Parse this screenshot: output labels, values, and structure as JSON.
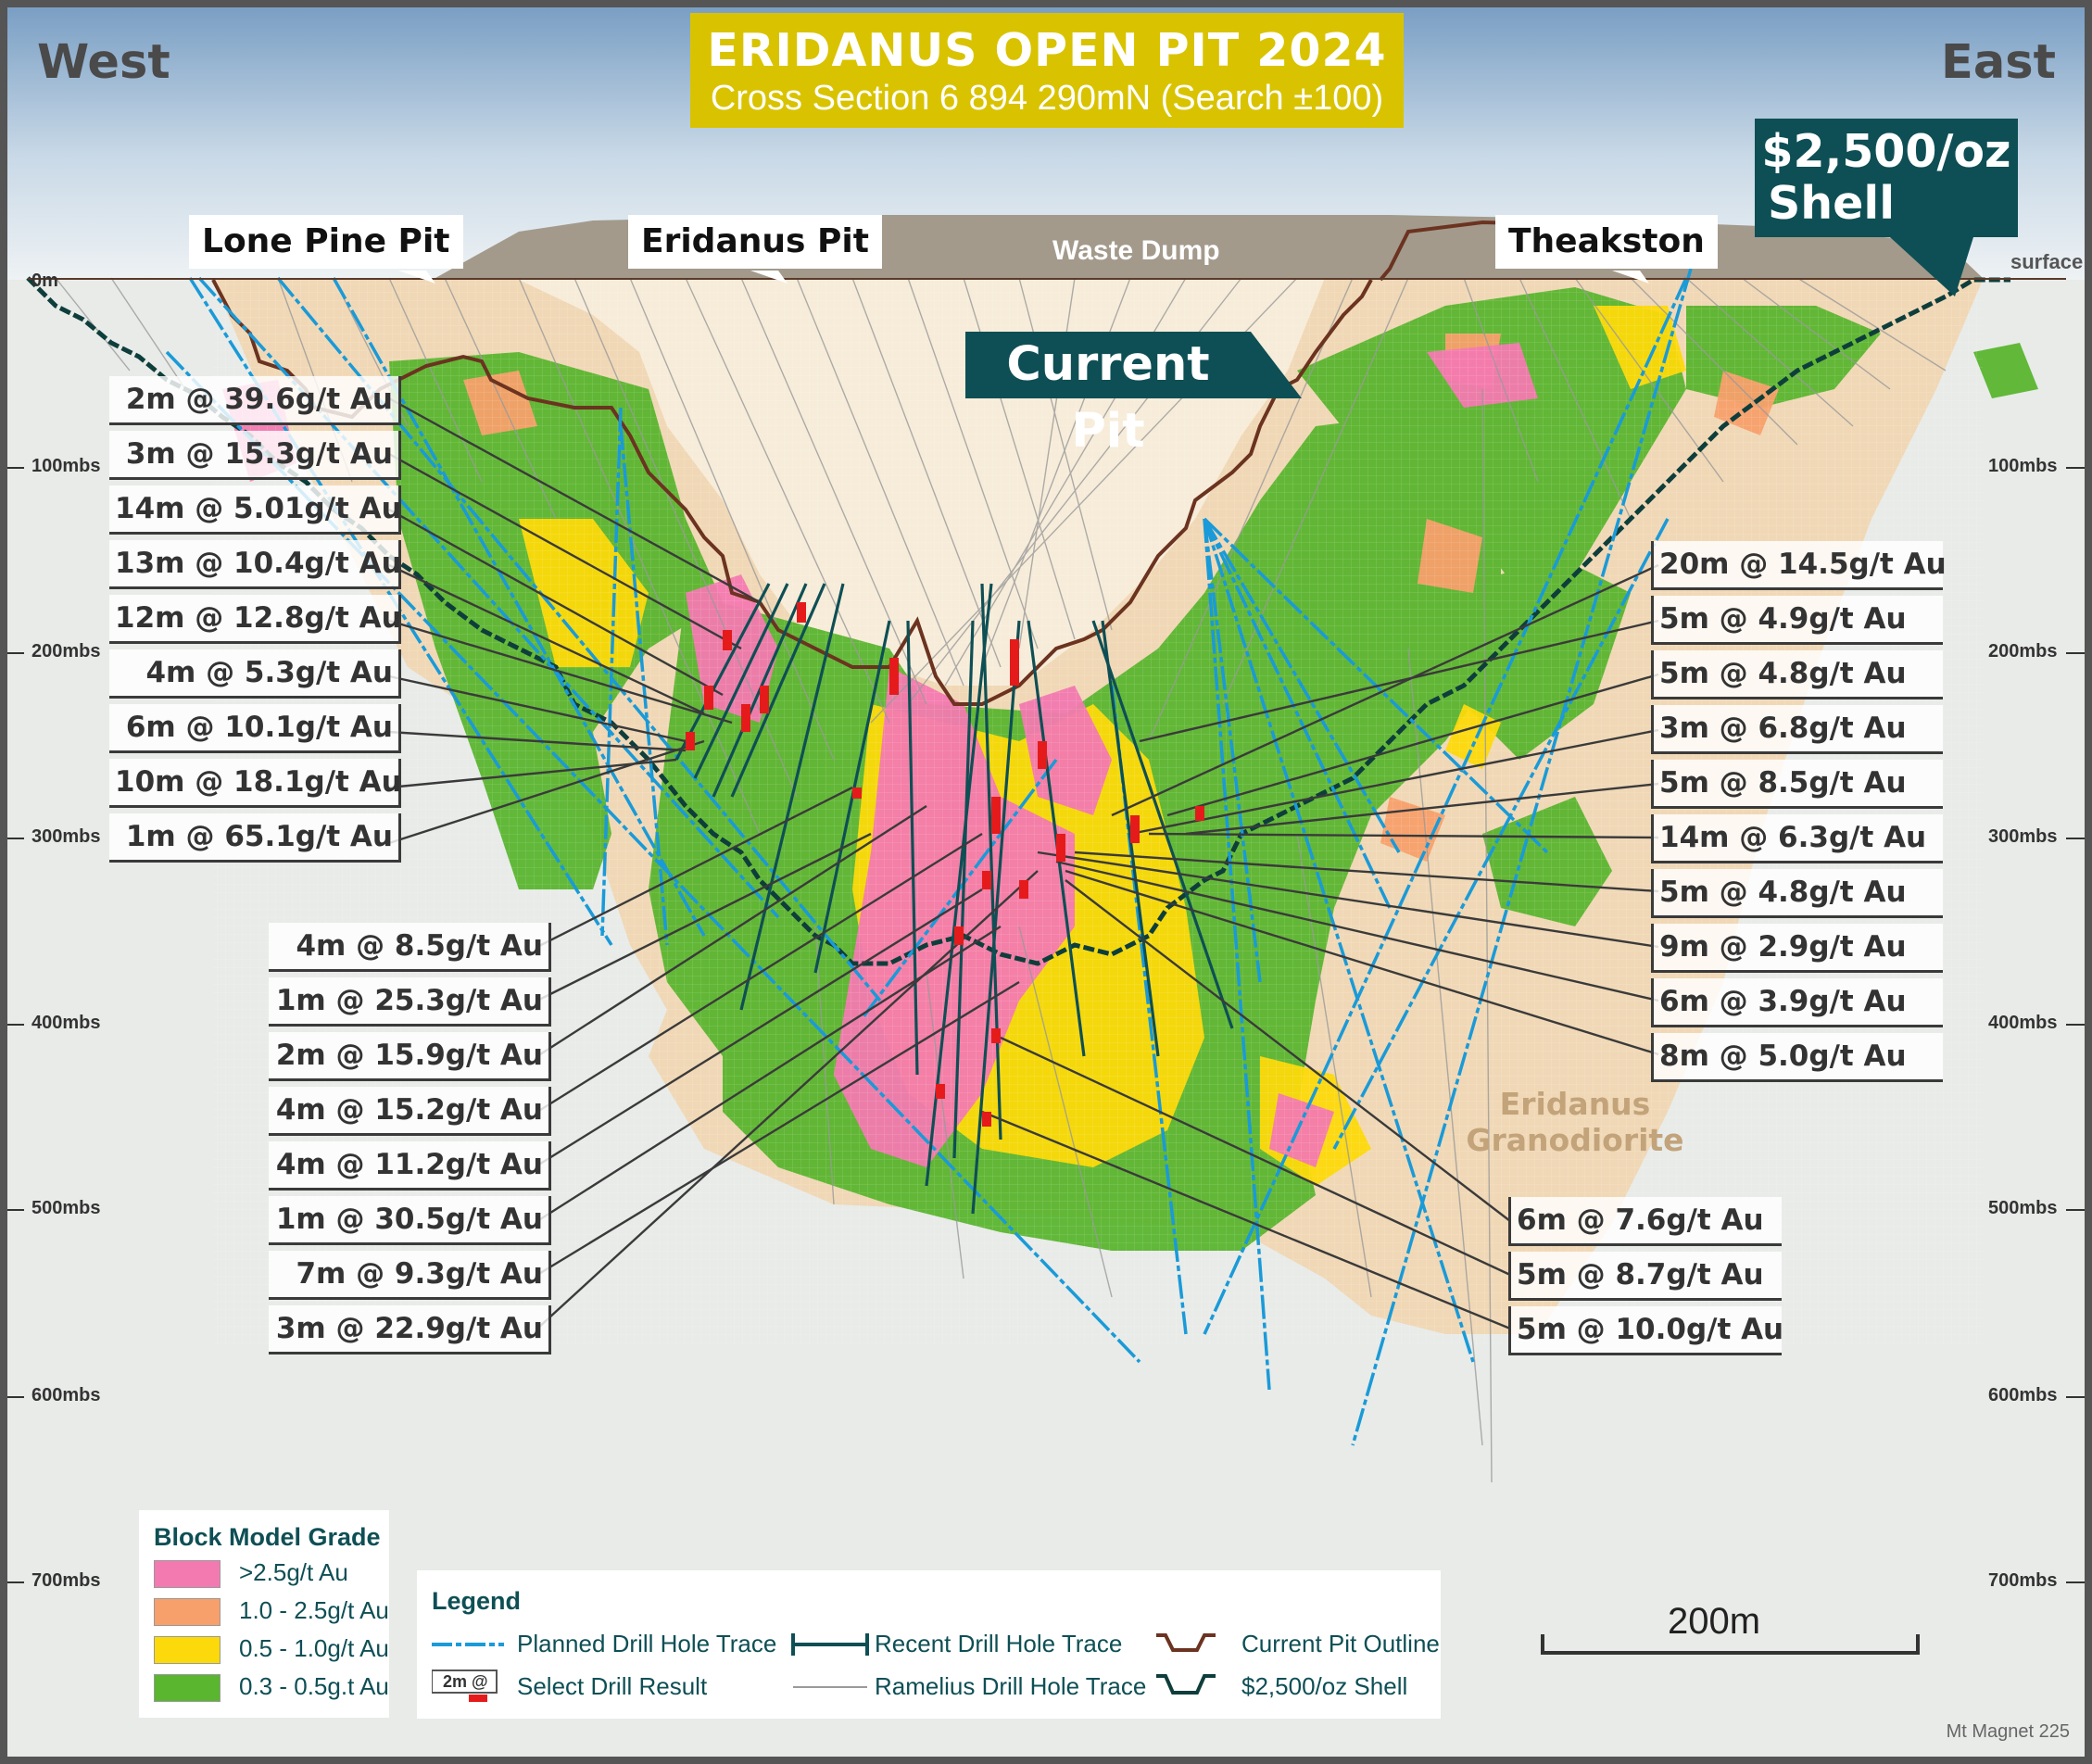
{
  "title": {
    "main": "ERIDANUS OPEN PIT 2024",
    "sub": "Cross Section 6 894 290mN (Search ±100)"
  },
  "directions": {
    "west": "West",
    "east": "East"
  },
  "pit_tags": {
    "lone_pine": "Lone Pine Pit",
    "eridanus": "Eridanus Pit",
    "theakston": "Theakston"
  },
  "labels": {
    "waste_dump": "Waste Dump",
    "surface": "surface",
    "zero": "0m",
    "current_pit": "Current Pit",
    "shell_line1": "$2,500/oz",
    "shell_line2": "Shell",
    "granodiorite_line1": "Eridanus",
    "granodiorite_line2": "Granodiorite"
  },
  "depth_axis": [
    "100mbs",
    "200mbs",
    "300mbs",
    "400mbs",
    "500mbs",
    "600mbs",
    "700mbs"
  ],
  "results_left_top": [
    "2m @ 39.6g/t Au",
    "3m @ 15.3g/t Au",
    "14m @ 5.01g/t Au",
    "13m @ 10.4g/t Au",
    "12m @ 12.8g/t Au",
    "4m @ 5.3g/t Au",
    "6m @ 10.1g/t Au",
    "10m @ 18.1g/t Au",
    "1m @ 65.1g/t Au"
  ],
  "results_left_bottom": [
    "4m @ 8.5g/t Au",
    "1m @ 25.3g/t Au",
    "2m @ 15.9g/t Au",
    "4m @ 15.2g/t Au",
    "4m @ 11.2g/t Au",
    "1m @ 30.5g/t Au",
    "7m @ 9.3g/t Au",
    "3m @ 22.9g/t Au"
  ],
  "results_right_top": [
    "20m @ 14.5g/t Au",
    "5m @ 4.9g/t Au",
    "5m @ 4.8g/t Au",
    "3m @ 6.8g/t Au",
    "5m @ 8.5g/t Au",
    "14m @ 6.3g/t Au",
    "5m @ 4.8g/t Au",
    "9m @ 2.9g/t Au",
    "6m @ 3.9g/t Au",
    "8m @ 5.0g/t Au"
  ],
  "results_right_bottom": [
    "6m @ 7.6g/t Au",
    "5m @ 8.7g/t Au",
    "5m @ 10.0g/t Au"
  ],
  "grade_legend": {
    "title": "Block Model Grade",
    "items": [
      {
        "label": ">2.5g/t Au",
        "color": "#f37ab0"
      },
      {
        "label": "1.0 - 2.5g/t Au",
        "color": "#f7a06c"
      },
      {
        "label": "0.5 - 1.0g/t Au",
        "color": "#fcd90a"
      },
      {
        "label": "0.3 - 0.5g.t Au",
        "color": "#5ab52f"
      }
    ]
  },
  "legend": {
    "title": "Legend",
    "planned": "Planned Drill Hole Trace",
    "recent": "Recent Drill Hole Trace",
    "pit_outline": "Current Pit Outline",
    "select_result": "Select Drill Result",
    "select_sample": "2m @",
    "ramelius": "Ramelius Drill Hole Trace",
    "shell": "$2,500/oz Shell"
  },
  "scale_bar": "200m",
  "footer": "Mt Magnet 225"
}
